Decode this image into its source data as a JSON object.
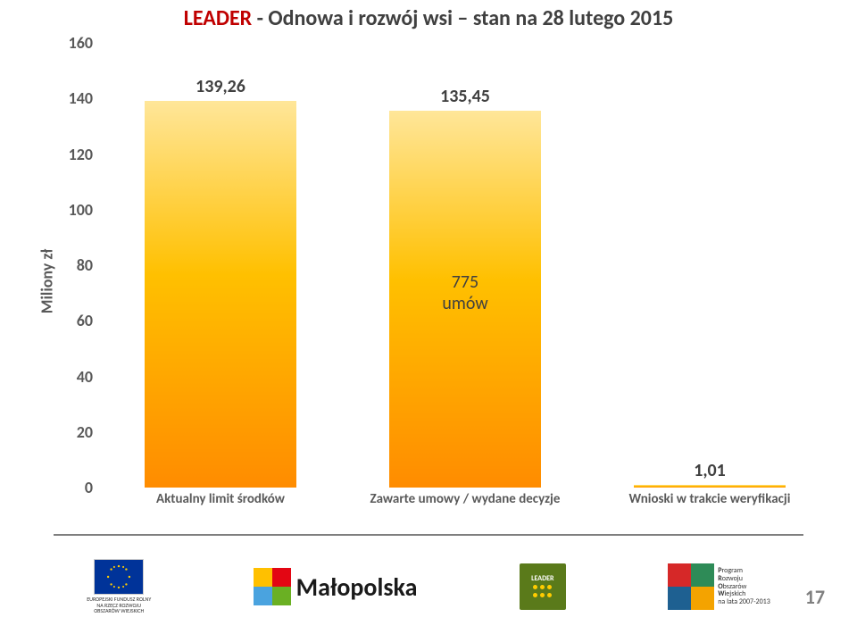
{
  "title_prefix": "LEADER",
  "title_rest": " - Odnowa i rozwój wsi – stan na 28 lutego 2015",
  "ylabel": "Miliony zł",
  "y": {
    "min": 0,
    "max": 160,
    "step": 20
  },
  "categories": [
    "Aktualny limit środków",
    "Zawarte umowy / wydane decyzje",
    "Wnioski w trakcie weryfikacji"
  ],
  "values": [
    139.26,
    135.45,
    1.01
  ],
  "value_labels": [
    "139,26",
    "135,45",
    "1,01"
  ],
  "annotation": {
    "line1": "775",
    "line2": "umów"
  },
  "bar_gradient": {
    "top": "#ffe699",
    "mid": "#ffc000",
    "bot": "#ff8c00"
  },
  "text_color": "#404040",
  "axis_color": "#595959",
  "title_prefix_color": "#c00000",
  "page_number": "17",
  "logos": {
    "eu_caption": "EUROPEJSKI FUNDUSZ ROLNY\nNA RZECZ ROZWOJU\nOBSZARÓW WIEJSKICH",
    "malopolska": "Małopolska",
    "leader_top": "LEADER",
    "prow": "Program\nRozwoju\nObszarów\nWiejskich\nna lata 2007-2013"
  }
}
